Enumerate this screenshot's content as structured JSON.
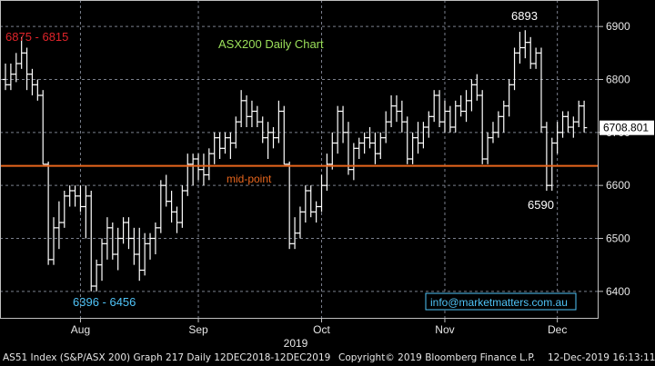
{
  "chart_data": {
    "type": "ohlc",
    "title": "ASX200 Daily Chart",
    "x_axis": {
      "year_label": "2019",
      "months": [
        {
          "label": "Aug",
          "index": 14
        },
        {
          "label": "Sep",
          "index": 36
        },
        {
          "label": "Oct",
          "index": 59
        },
        {
          "label": "Nov",
          "index": 82
        },
        {
          "label": "Dec",
          "index": 103
        }
      ]
    },
    "y_axis": {
      "ylim": [
        6350,
        6950
      ],
      "ticks": [
        6400,
        6500,
        6600,
        6700,
        6800,
        6900
      ],
      "position": "right"
    },
    "last_price": "6708.801",
    "grid": true,
    "annotations": {
      "resistance": "6875 - 6815",
      "support": "6396 - 6456",
      "high": "6893",
      "low": "6590",
      "midpoint_label": "mid-point",
      "midpoint_value": 6637,
      "contact": "info@marketmatters.com.au"
    },
    "ohlc": [
      [
        6800,
        6830,
        6780,
        6790
      ],
      [
        6790,
        6830,
        6780,
        6810
      ],
      [
        6810,
        6850,
        6795,
        6830
      ],
      [
        6830,
        6880,
        6820,
        6850
      ],
      [
        6850,
        6860,
        6780,
        6810
      ],
      [
        6810,
        6820,
        6770,
        6790
      ],
      [
        6790,
        6800,
        6760,
        6770
      ],
      [
        6770,
        6780,
        6640,
        6640
      ],
      [
        6640,
        6645,
        6450,
        6460
      ],
      [
        6460,
        6540,
        6450,
        6520
      ],
      [
        6520,
        6570,
        6480,
        6530
      ],
      [
        6530,
        6590,
        6520,
        6580
      ],
      [
        6580,
        6600,
        6560,
        6590
      ],
      [
        6590,
        6600,
        6560,
        6580
      ],
      [
        6580,
        6600,
        6550,
        6560
      ],
      [
        6560,
        6600,
        6500,
        6580
      ],
      [
        6580,
        6590,
        6400,
        6410
      ],
      [
        6410,
        6460,
        6400,
        6450
      ],
      [
        6450,
        6500,
        6420,
        6490
      ],
      [
        6490,
        6540,
        6460,
        6520
      ],
      [
        6520,
        6530,
        6460,
        6470
      ],
      [
        6470,
        6520,
        6440,
        6500
      ],
      [
        6500,
        6540,
        6490,
        6530
      ],
      [
        6530,
        6540,
        6480,
        6500
      ],
      [
        6500,
        6520,
        6450,
        6470
      ],
      [
        6470,
        6520,
        6420,
        6440
      ],
      [
        6440,
        6510,
        6430,
        6490
      ],
      [
        6490,
        6510,
        6460,
        6500
      ],
      [
        6500,
        6530,
        6470,
        6520
      ],
      [
        6520,
        6610,
        6510,
        6600
      ],
      [
        6600,
        6620,
        6560,
        6570
      ],
      [
        6570,
        6590,
        6530,
        6550
      ],
      [
        6550,
        6560,
        6510,
        6530
      ],
      [
        6530,
        6600,
        6520,
        6590
      ],
      [
        6590,
        6660,
        6580,
        6640
      ],
      [
        6640,
        6660,
        6600,
        6650
      ],
      [
        6650,
        6660,
        6610,
        6630
      ],
      [
        6630,
        6660,
        6600,
        6620
      ],
      [
        6620,
        6670,
        6610,
        6660
      ],
      [
        6660,
        6700,
        6640,
        6690
      ],
      [
        6690,
        6700,
        6650,
        6670
      ],
      [
        6670,
        6700,
        6660,
        6690
      ],
      [
        6690,
        6700,
        6650,
        6680
      ],
      [
        6680,
        6730,
        6670,
        6720
      ],
      [
        6720,
        6780,
        6710,
        6760
      ],
      [
        6760,
        6770,
        6710,
        6730
      ],
      [
        6730,
        6760,
        6710,
        6740
      ],
      [
        6740,
        6750,
        6710,
        6720
      ],
      [
        6720,
        6730,
        6680,
        6690
      ],
      [
        6690,
        6720,
        6650,
        6700
      ],
      [
        6700,
        6710,
        6670,
        6690
      ],
      [
        6690,
        6760,
        6680,
        6740
      ],
      [
        6740,
        6750,
        6640,
        6640
      ],
      [
        6640,
        6645,
        6480,
        6490
      ],
      [
        6490,
        6540,
        6480,
        6510
      ],
      [
        6510,
        6560,
        6500,
        6550
      ],
      [
        6550,
        6600,
        6530,
        6590
      ],
      [
        6590,
        6600,
        6540,
        6550
      ],
      [
        6550,
        6570,
        6530,
        6560
      ],
      [
        6560,
        6620,
        6550,
        6600
      ],
      [
        6600,
        6660,
        6590,
        6640
      ],
      [
        6640,
        6700,
        6630,
        6680
      ],
      [
        6680,
        6750,
        6660,
        6740
      ],
      [
        6740,
        6750,
        6680,
        6700
      ],
      [
        6700,
        6720,
        6620,
        6630
      ],
      [
        6630,
        6680,
        6610,
        6670
      ],
      [
        6670,
        6690,
        6650,
        6680
      ],
      [
        6680,
        6700,
        6660,
        6690
      ],
      [
        6690,
        6710,
        6670,
        6680
      ],
      [
        6680,
        6700,
        6640,
        6660
      ],
      [
        6660,
        6700,
        6650,
        6690
      ],
      [
        6690,
        6740,
        6680,
        6720
      ],
      [
        6720,
        6770,
        6710,
        6750
      ],
      [
        6750,
        6770,
        6720,
        6740
      ],
      [
        6740,
        6760,
        6700,
        6720
      ],
      [
        6720,
        6730,
        6640,
        6650
      ],
      [
        6650,
        6700,
        6640,
        6690
      ],
      [
        6690,
        6720,
        6660,
        6680
      ],
      [
        6680,
        6720,
        6670,
        6710
      ],
      [
        6710,
        6740,
        6690,
        6730
      ],
      [
        6730,
        6780,
        6720,
        6770
      ],
      [
        6770,
        6780,
        6710,
        6720
      ],
      [
        6720,
        6760,
        6700,
        6740
      ],
      [
        6740,
        6750,
        6700,
        6710
      ],
      [
        6710,
        6760,
        6700,
        6750
      ],
      [
        6750,
        6770,
        6730,
        6740
      ],
      [
        6740,
        6780,
        6720,
        6760
      ],
      [
        6760,
        6800,
        6740,
        6790
      ],
      [
        6790,
        6810,
        6760,
        6770
      ],
      [
        6770,
        6780,
        6640,
        6650
      ],
      [
        6650,
        6700,
        6640,
        6690
      ],
      [
        6690,
        6720,
        6680,
        6700
      ],
      [
        6700,
        6740,
        6690,
        6730
      ],
      [
        6730,
        6760,
        6700,
        6750
      ],
      [
        6750,
        6800,
        6730,
        6790
      ],
      [
        6790,
        6860,
        6780,
        6850
      ],
      [
        6850,
        6890,
        6830,
        6860
      ],
      [
        6860,
        6893,
        6840,
        6870
      ],
      [
        6870,
        6880,
        6820,
        6830
      ],
      [
        6830,
        6860,
        6820,
        6850
      ],
      [
        6850,
        6860,
        6700,
        6710
      ],
      [
        6710,
        6720,
        6590,
        6600
      ],
      [
        6600,
        6690,
        6590,
        6680
      ],
      [
        6680,
        6720,
        6660,
        6700
      ],
      [
        6700,
        6740,
        6690,
        6730
      ],
      [
        6730,
        6740,
        6700,
        6710
      ],
      [
        6710,
        6730,
        6690,
        6720
      ],
      [
        6720,
        6760,
        6710,
        6750
      ],
      [
        6750,
        6760,
        6700,
        6709
      ]
    ]
  },
  "footer": {
    "left": "AS51 Index (S&P/ASX 200) Graph 217  Daily 12DEC2018-12DEC2019",
    "center": "Copyright© 2019 Bloomberg Finance L.P.",
    "right": "12-Dec-2019 16:13:11"
  },
  "colors": {
    "background": "#000000",
    "plot_frame": "#bfbfbf",
    "grid": "#7a7f8c",
    "bars": "#ffffff",
    "midpoint_line": "#e8661d",
    "midpoint_label": "#e8661d",
    "resistance_label": "#e0242a",
    "support_label": "#4fc3f7",
    "title": "#9be05a",
    "contact": "#4fc3f7",
    "axis_text": "#e6e6e6"
  }
}
